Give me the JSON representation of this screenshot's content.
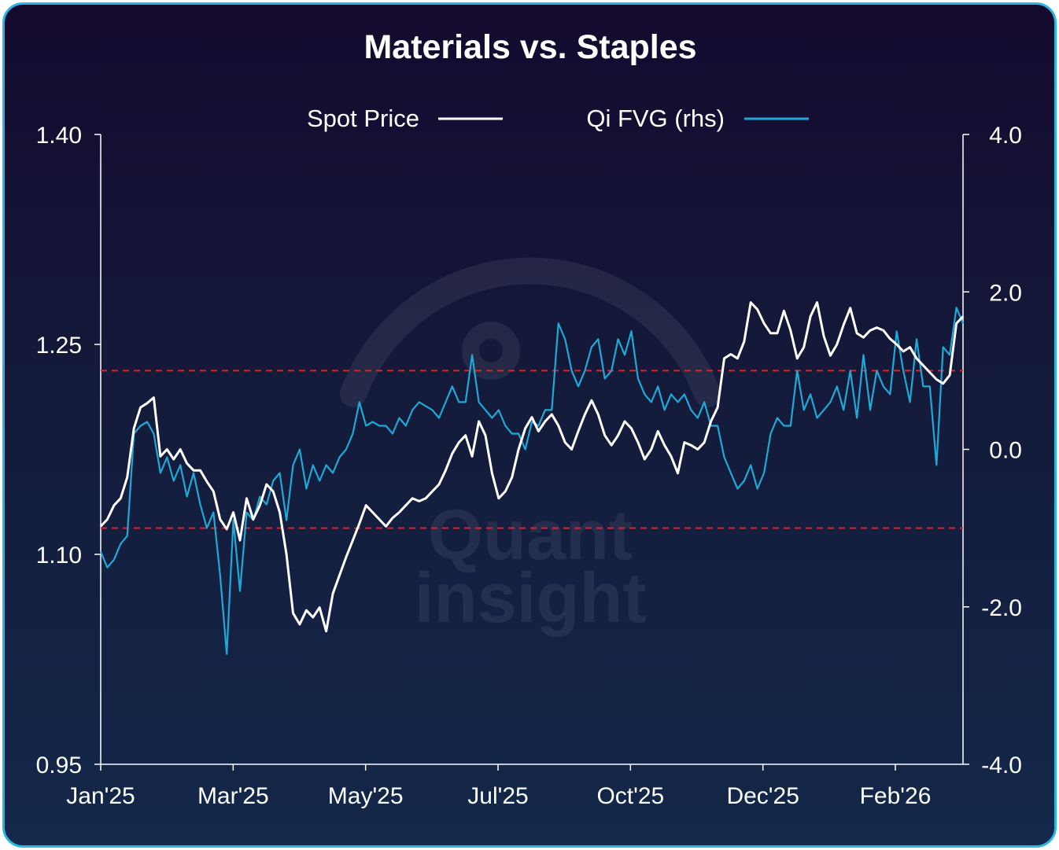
{
  "chart_data": {
    "type": "line",
    "title": "Materials vs. Staples",
    "watermark": [
      "Quant",
      "insight"
    ],
    "legend": [
      {
        "name": "Spot Price",
        "color": "#ffffff"
      },
      {
        "name": "Qi FVG  (rhs)",
        "color": "#1ea9d6"
      }
    ],
    "left_axis": {
      "ticks": [
        "1.40",
        "1.25",
        "1.10",
        "0.95"
      ],
      "range": [
        0.95,
        1.4
      ]
    },
    "right_axis": {
      "ticks": [
        "4.0",
        "2.0",
        "0.0",
        "-2.0",
        "-4.0"
      ],
      "range": [
        -4.0,
        4.0
      ]
    },
    "x_labels": [
      "Jan'25",
      "Mar'25",
      "May'25",
      "Jul'25",
      "Oct'25",
      "Dec'25",
      "Feb'26"
    ],
    "reference_lines_rhs": [
      1.0,
      -1.0
    ],
    "series": [
      {
        "name": "Spot Price",
        "axis": "left",
        "x": [
          0,
          1,
          2,
          3,
          4,
          5,
          6,
          7,
          8,
          9,
          10,
          11,
          12,
          13,
          14,
          15,
          16,
          17,
          18,
          19,
          20,
          21,
          22,
          23,
          24,
          25,
          26,
          27,
          28,
          29,
          30,
          31,
          32,
          33,
          34,
          35,
          36,
          37,
          38,
          39,
          40,
          41,
          42,
          43,
          44,
          45,
          46,
          47,
          48,
          49,
          50,
          51,
          52,
          53,
          54,
          55,
          56,
          57,
          58,
          59,
          60,
          61,
          62,
          63,
          64,
          65,
          66,
          67,
          68,
          69,
          70,
          71,
          72,
          73,
          74,
          75,
          76,
          77,
          78,
          79,
          80,
          81,
          82,
          83,
          84,
          85,
          86,
          87,
          88,
          89,
          90,
          91,
          92,
          93,
          94,
          95,
          96,
          97,
          98,
          99,
          100,
          101,
          102,
          103,
          104,
          105,
          106,
          107,
          108,
          109,
          110,
          111,
          112,
          113,
          114,
          115,
          116,
          117,
          118,
          119,
          120,
          121,
          122,
          123,
          124,
          125,
          126,
          127,
          128,
          129,
          130
        ],
        "values": [
          1.12,
          1.125,
          1.135,
          1.14,
          1.155,
          1.19,
          1.205,
          1.208,
          1.212,
          1.17,
          1.175,
          1.168,
          1.175,
          1.165,
          1.16,
          1.16,
          1.152,
          1.145,
          1.125,
          1.118,
          1.13,
          1.11,
          1.14,
          1.125,
          1.135,
          1.15,
          1.145,
          1.13,
          1.1,
          1.058,
          1.05,
          1.06,
          1.055,
          1.062,
          1.045,
          1.072,
          1.085,
          1.098,
          1.11,
          1.122,
          1.135,
          1.13,
          1.125,
          1.12,
          1.126,
          1.13,
          1.135,
          1.14,
          1.138,
          1.14,
          1.145,
          1.15,
          1.16,
          1.172,
          1.18,
          1.185,
          1.17,
          1.195,
          1.185,
          1.158,
          1.14,
          1.145,
          1.155,
          1.175,
          1.19,
          1.198,
          1.188,
          1.195,
          1.2,
          1.192,
          1.18,
          1.175,
          1.188,
          1.2,
          1.21,
          1.2,
          1.185,
          1.178,
          1.185,
          1.195,
          1.19,
          1.18,
          1.168,
          1.175,
          1.188,
          1.178,
          1.17,
          1.158,
          1.18,
          1.178,
          1.175,
          1.18,
          1.195,
          1.205,
          1.24,
          1.243,
          1.24,
          1.252,
          1.28,
          1.275,
          1.265,
          1.258,
          1.258,
          1.274,
          1.26,
          1.24,
          1.248,
          1.27,
          1.28,
          1.256,
          1.242,
          1.25,
          1.264,
          1.276,
          1.258,
          1.255,
          1.26,
          1.262,
          1.26,
          1.254,
          1.25,
          1.245,
          1.248,
          1.24,
          1.235,
          1.23,
          1.225,
          1.222,
          1.228,
          1.265,
          1.27
        ]
      },
      {
        "name": "Qi FVG  (rhs)",
        "axis": "right",
        "x": [
          0,
          1,
          2,
          3,
          4,
          5,
          6,
          7,
          8,
          9,
          10,
          11,
          12,
          13,
          14,
          15,
          16,
          17,
          18,
          19,
          20,
          21,
          22,
          23,
          24,
          25,
          26,
          27,
          28,
          29,
          30,
          31,
          32,
          33,
          34,
          35,
          36,
          37,
          38,
          39,
          40,
          41,
          42,
          43,
          44,
          45,
          46,
          47,
          48,
          49,
          50,
          51,
          52,
          53,
          54,
          55,
          56,
          57,
          58,
          59,
          60,
          61,
          62,
          63,
          64,
          65,
          66,
          67,
          68,
          69,
          70,
          71,
          72,
          73,
          74,
          75,
          76,
          77,
          78,
          79,
          80,
          81,
          82,
          83,
          84,
          85,
          86,
          87,
          88,
          89,
          90,
          91,
          92,
          93,
          94,
          95,
          96,
          97,
          98,
          99,
          100,
          101,
          102,
          103,
          104,
          105,
          106,
          107,
          108,
          109,
          110,
          111,
          112,
          113,
          114,
          115,
          116,
          117,
          118,
          119,
          120,
          121,
          122,
          123,
          124,
          125,
          126,
          127,
          128,
          129,
          130
        ],
        "values": [
          -1.3,
          -1.5,
          -1.4,
          -1.2,
          -1.1,
          0.2,
          0.3,
          0.35,
          0.2,
          -0.3,
          -0.1,
          -0.4,
          -0.2,
          -0.6,
          -0.3,
          -0.7,
          -1.0,
          -0.8,
          -1.6,
          -2.6,
          -0.9,
          -1.8,
          -0.8,
          -0.9,
          -0.6,
          -0.7,
          -0.4,
          -0.3,
          -0.9,
          -0.2,
          0.0,
          -0.5,
          -0.2,
          -0.4,
          -0.2,
          -0.3,
          -0.1,
          0.0,
          0.2,
          0.6,
          0.3,
          0.35,
          0.3,
          0.3,
          0.2,
          0.4,
          0.3,
          0.5,
          0.6,
          0.55,
          0.5,
          0.4,
          0.6,
          0.8,
          0.6,
          0.6,
          1.2,
          0.6,
          0.5,
          0.4,
          0.5,
          0.3,
          0.2,
          0.2,
          0.0,
          0.35,
          0.3,
          0.5,
          0.5,
          1.6,
          1.4,
          1.0,
          0.8,
          1.0,
          1.3,
          1.4,
          0.9,
          1.0,
          1.4,
          1.2,
          1.5,
          0.9,
          0.7,
          0.6,
          0.8,
          0.5,
          0.7,
          0.6,
          0.7,
          0.5,
          0.4,
          0.6,
          0.3,
          0.3,
          -0.1,
          -0.3,
          -0.5,
          -0.4,
          -0.2,
          -0.5,
          -0.3,
          0.2,
          0.4,
          0.3,
          0.3,
          1.0,
          0.5,
          0.7,
          0.4,
          0.5,
          0.6,
          0.8,
          0.5,
          1.0,
          0.4,
          1.2,
          0.5,
          1.0,
          0.8,
          0.7,
          1.5,
          1.0,
          0.6,
          1.4,
          0.8,
          0.8,
          -0.2,
          1.3,
          1.2,
          1.8,
          1.6
        ]
      }
    ]
  }
}
